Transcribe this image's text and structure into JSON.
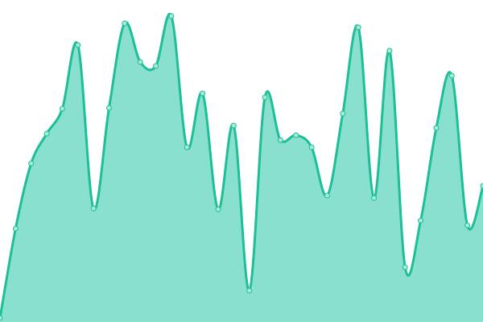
{
  "chart_data": {
    "type": "area",
    "title": "",
    "xlabel": "",
    "ylabel": "",
    "grid": false,
    "legend": "none",
    "ylim": [
      0,
      400
    ],
    "x": [
      0,
      1,
      2,
      3,
      4,
      5,
      6,
      7,
      8,
      9,
      10,
      11,
      12,
      13,
      14,
      15,
      16,
      17,
      18,
      19,
      20,
      21,
      22,
      23,
      24,
      25,
      26,
      27,
      28,
      29,
      30,
      31
    ],
    "series": [
      {
        "values": [
          5,
          116,
          197,
          234,
          265,
          344,
          141,
          266,
          371,
          323,
          318,
          380,
          217,
          284,
          140,
          244,
          39,
          279,
          226,
          232,
          217,
          157,
          259,
          366,
          154,
          337,
          68,
          126,
          241,
          306,
          120,
          169
        ]
      }
    ],
    "colors": {
      "line": "#1dbf96",
      "fill": "#8ae0cf",
      "point_fill": "#a8ead9",
      "point_stroke": "#1dbf96"
    }
  }
}
